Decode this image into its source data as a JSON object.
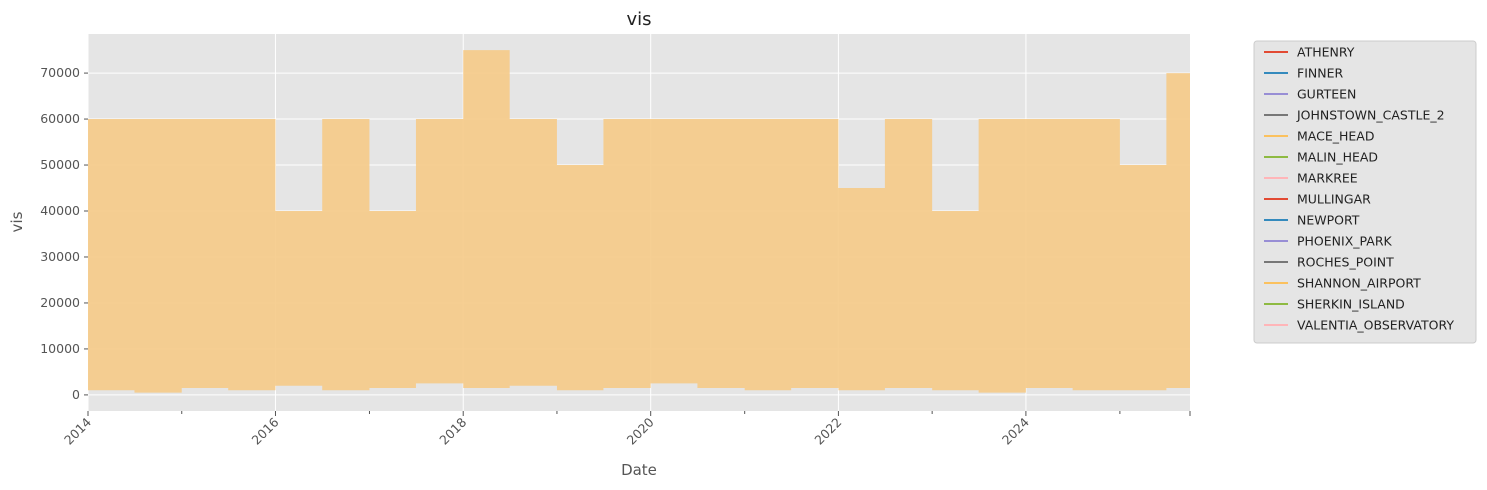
{
  "chart_data": {
    "type": "area",
    "title": "vis",
    "xlabel": "Date",
    "ylabel": "vis",
    "xlim": [
      "2014-01-01",
      "2025-10-01"
    ],
    "ylim": [
      -3500,
      78500
    ],
    "x_ticks": [
      "2014",
      "2016",
      "2018",
      "2020",
      "2022",
      "2024"
    ],
    "y_ticks": [
      0,
      10000,
      20000,
      30000,
      40000,
      50000,
      60000,
      70000
    ],
    "y_tick_labels": [
      "0",
      "10000",
      "20000",
      "30000",
      "40000",
      "50000",
      "60000",
      "70000"
    ],
    "grid": true,
    "legend_placement": "outside upper right",
    "legend": [
      {
        "name": "ATHENRY",
        "color": "#E24A33"
      },
      {
        "name": "FINNER",
        "color": "#348ABD"
      },
      {
        "name": "GURTEEN",
        "color": "#988ED5"
      },
      {
        "name": "JOHNSTOWN_CASTLE_2",
        "color": "#777777"
      },
      {
        "name": "MACE_HEAD",
        "color": "#FBC15E"
      },
      {
        "name": "MALIN_HEAD",
        "color": "#8EBA42"
      },
      {
        "name": "MARKREE",
        "color": "#FFB5B8"
      },
      {
        "name": "MULLINGAR",
        "color": "#E24A33"
      },
      {
        "name": "NEWPORT",
        "color": "#348ABD"
      },
      {
        "name": "PHOENIX_PARK",
        "color": "#988ED5"
      },
      {
        "name": "ROCHES_POINT",
        "color": "#777777"
      },
      {
        "name": "SHANNON_AIRPORT",
        "color": "#FBC15E"
      },
      {
        "name": "SHERKIN_ISLAND",
        "color": "#8EBA42"
      },
      {
        "name": "VALENTIA_OBSERVATORY",
        "color": "#FFB5B8"
      }
    ],
    "series": [
      {
        "name": "SHANNON_AIRPORT",
        "color": "#F5CB8A",
        "description_points": {
          "x": [
            "2014-01-01",
            "2014-07-01",
            "2015-01-01",
            "2015-07-01",
            "2016-01-01",
            "2016-07-01",
            "2017-01-01",
            "2017-07-01",
            "2018-01-01",
            "2018-07-01",
            "2019-01-01",
            "2019-07-01",
            "2020-01-01",
            "2020-07-01",
            "2021-01-01",
            "2021-07-01",
            "2022-01-01",
            "2022-07-01",
            "2023-01-01",
            "2023-07-01",
            "2024-01-01",
            "2024-07-01",
            "2025-01-01",
            "2025-07-01"
          ],
          "upper": [
            60000,
            60000,
            60000,
            60000,
            40000,
            60000,
            40000,
            60000,
            75000,
            60000,
            50000,
            60000,
            60000,
            60000,
            60000,
            60000,
            45000,
            60000,
            40000,
            60000,
            60000,
            60000,
            50000,
            70000
          ],
          "lower": [
            1000,
            500,
            1500,
            1000,
            2000,
            1000,
            1500,
            2500,
            1500,
            2000,
            1000,
            1500,
            2500,
            1500,
            1000,
            1500,
            1000,
            1500,
            1000,
            500,
            1500,
            1000,
            1000,
            1500
          ]
        }
      }
    ]
  }
}
